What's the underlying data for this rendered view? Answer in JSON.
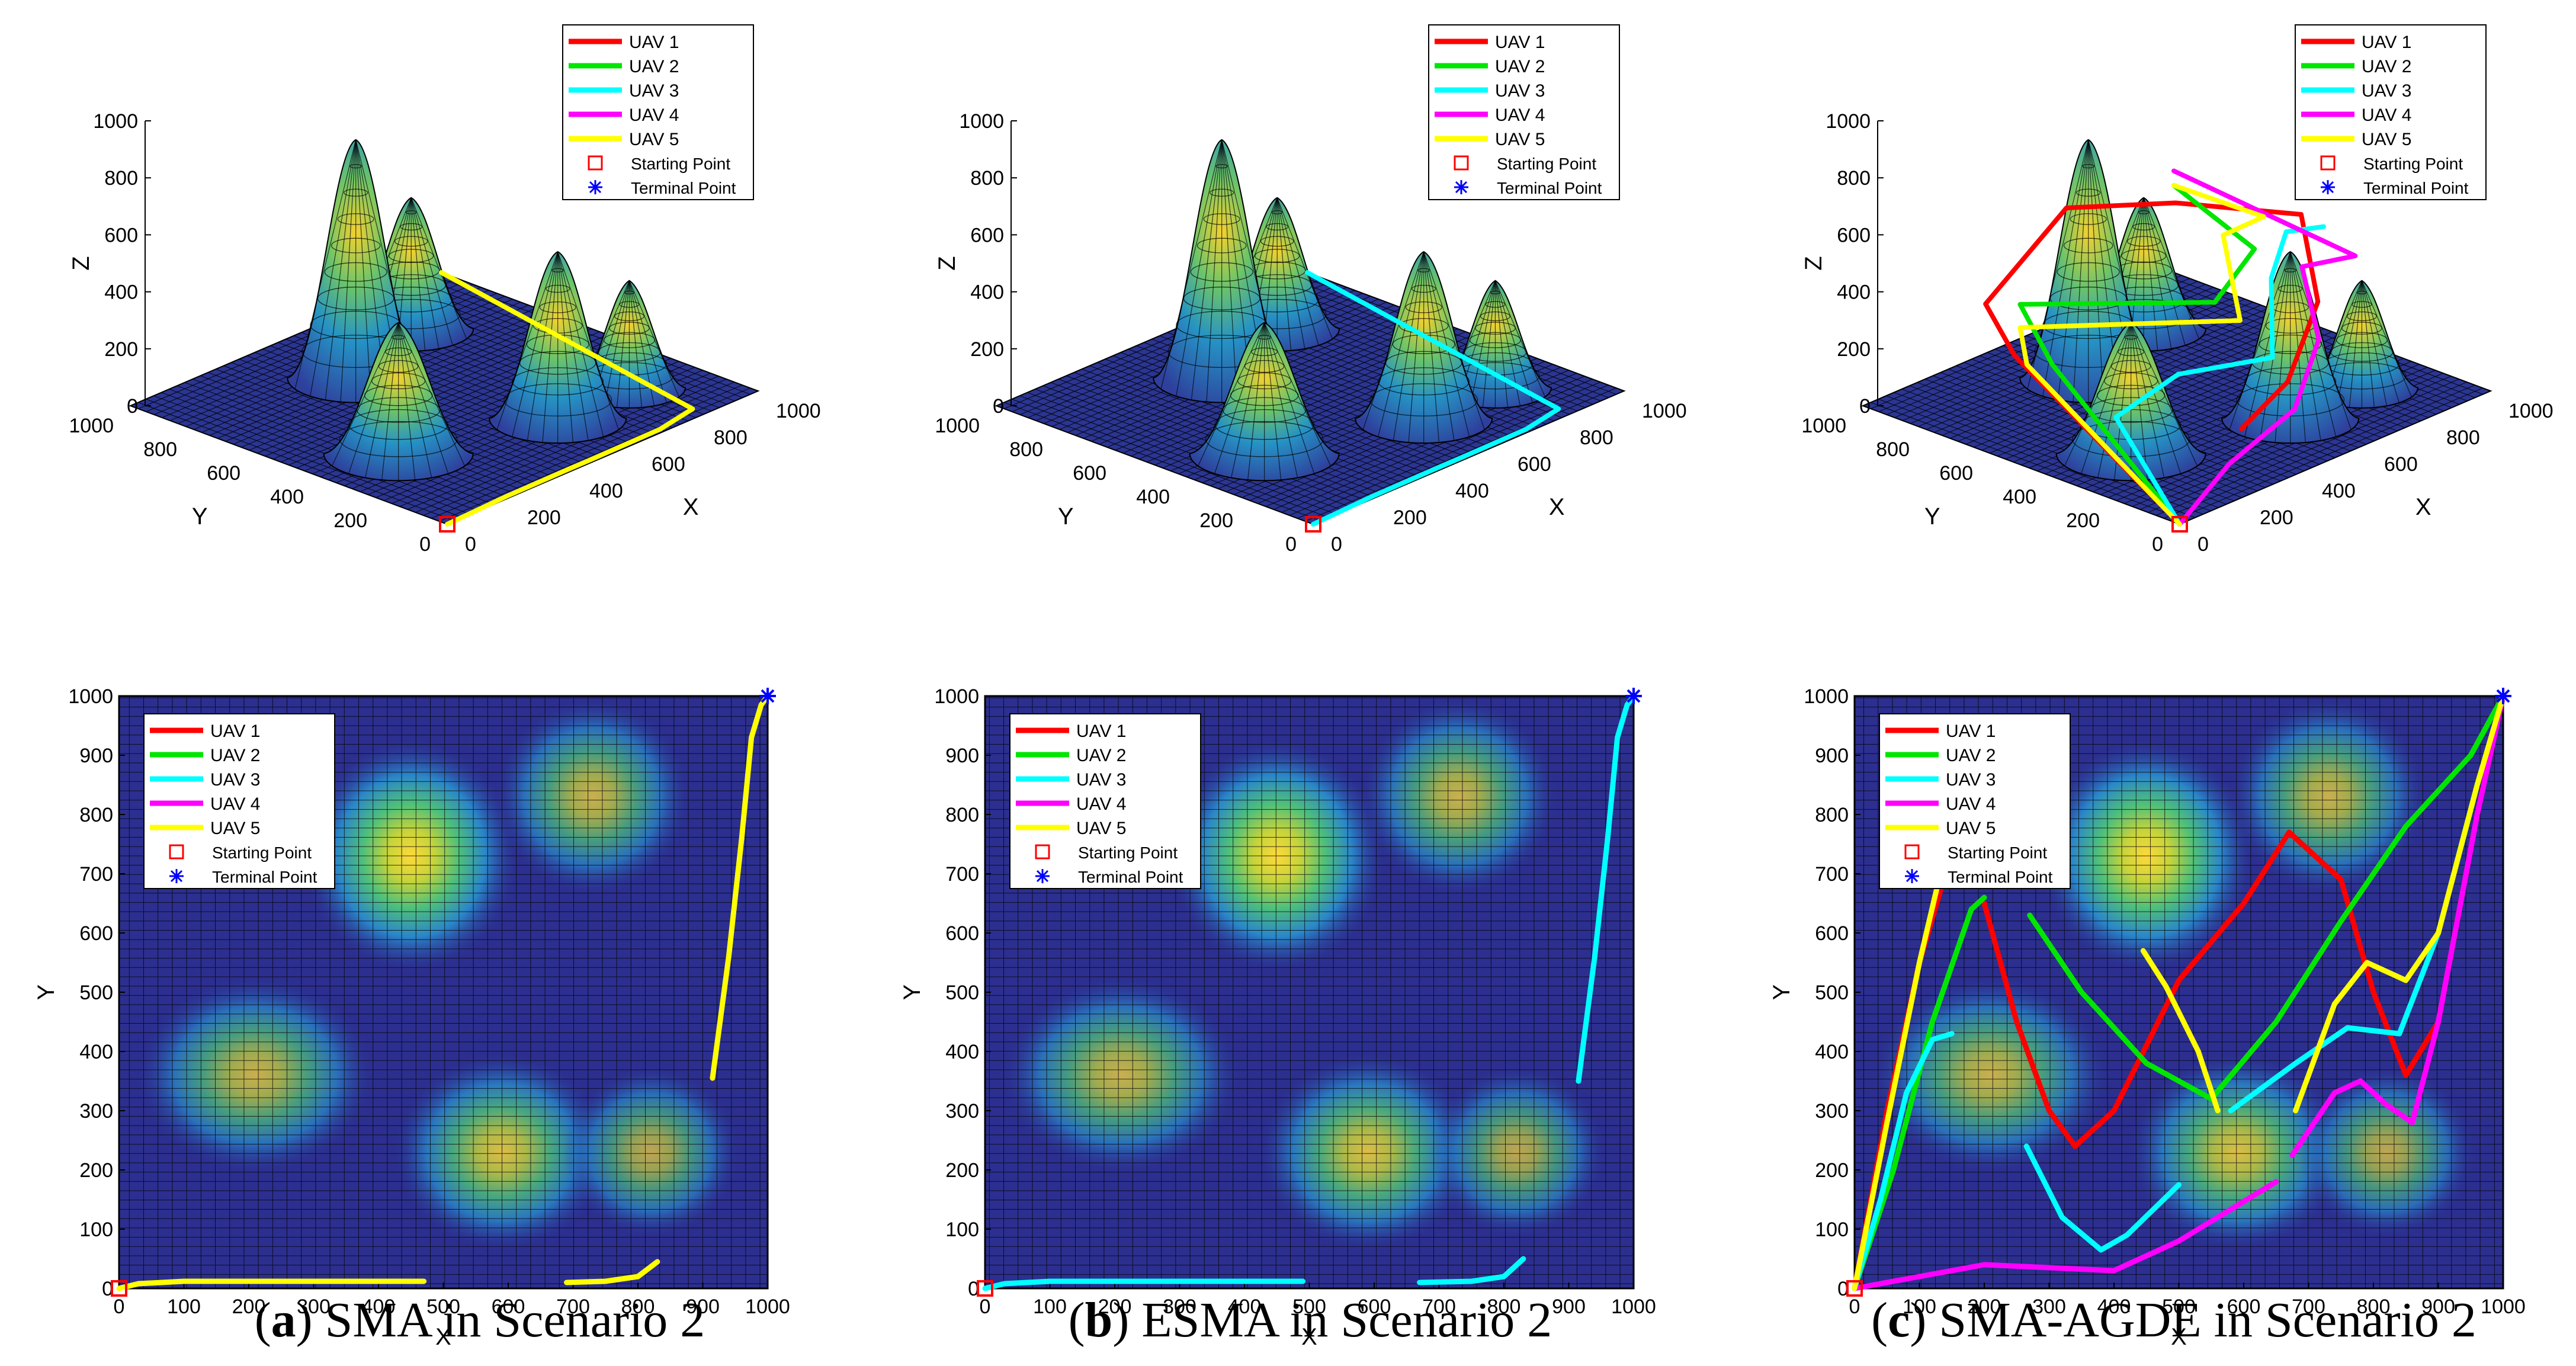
{
  "colors": {
    "uav1": "#ff0000",
    "uav2": "#00e600",
    "uav3": "#00ffff",
    "uav4": "#ff00ff",
    "uav5": "#ffff00",
    "start": "#ff0000",
    "terminal": "#0000ff",
    "bg_dark": "#2c2f8f"
  },
  "legend": {
    "uav1": "UAV 1",
    "uav2": "UAV 2",
    "uav3": "UAV 3",
    "uav4": "UAV 4",
    "uav5": "UAV 5",
    "start": "Starting Point",
    "terminal": "Terminal Point"
  },
  "captions": [
    {
      "letter": "a",
      "text": ") SMA in Scenario 2"
    },
    {
      "letter": "b",
      "text": ") ESMA in Scenario 2"
    },
    {
      "letter": "c",
      "text": ") SMA-AGDE in Scenario 2"
    }
  ],
  "chart_data": [
    {
      "type": "line",
      "panel": "a-3d",
      "title": "",
      "xlabel": "X",
      "ylabel": "Y",
      "zlabel": "Z",
      "xlim": [
        0,
        1000
      ],
      "ylim": [
        0,
        1000
      ],
      "zlim": [
        0,
        1000
      ],
      "x_ticks": [
        "0",
        "200",
        "400",
        "600",
        "800",
        "1000"
      ],
      "y_ticks": [
        "0",
        "200",
        "400",
        "600",
        "800",
        "1000"
      ],
      "z_ticks": [
        "0",
        "200",
        "400",
        "600",
        "800",
        "1000"
      ],
      "series": [
        {
          "name": "UAV 5",
          "x": [
            0,
            200,
            400,
            470,
            700,
            830,
            1000
          ],
          "y": [
            0,
            10,
            12,
            12,
            15,
            40,
            1000
          ],
          "z": [
            0,
            0,
            0,
            0,
            0,
            0,
            0
          ]
        }
      ]
    },
    {
      "type": "line",
      "panel": "a-2d",
      "xlabel": "X",
      "ylabel": "Y",
      "xlim": [
        0,
        1000
      ],
      "ylim": [
        0,
        1000
      ],
      "x_ticks": [
        "0",
        "100",
        "200",
        "300",
        "400",
        "500",
        "600",
        "700",
        "800",
        "900",
        "1000"
      ],
      "y_ticks": [
        "0",
        "100",
        "200",
        "300",
        "400",
        "500",
        "600",
        "700",
        "800",
        "900",
        "1000"
      ],
      "series": [
        {
          "name": "UAV 5",
          "segments": [
            {
              "x": [
                0,
                30,
                100,
                200,
                300,
                400,
                470
              ],
              "y": [
                0,
                8,
                12,
                12,
                12,
                12,
                12
              ]
            },
            {
              "x": [
                690,
                750,
                800,
                830
              ],
              "y": [
                10,
                12,
                20,
                45
              ]
            },
            {
              "x": [
                915,
                940,
                960,
                975,
                990,
                1000
              ],
              "y": [
                355,
                560,
                760,
                930,
                985,
                1000
              ]
            }
          ]
        }
      ]
    },
    {
      "type": "line",
      "panel": "b-3d",
      "xlabel": "X",
      "ylabel": "Y",
      "zlabel": "Z",
      "xlim": [
        0,
        1000
      ],
      "ylim": [
        0,
        1000
      ],
      "zlim": [
        0,
        1000
      ],
      "x_ticks": [
        "0",
        "200",
        "400",
        "600",
        "800",
        "1000"
      ],
      "y_ticks": [
        "0",
        "200",
        "400",
        "600",
        "800",
        "1000"
      ],
      "z_ticks": [
        "0",
        "200",
        "400",
        "600",
        "800",
        "1000"
      ],
      "series": [
        {
          "name": "UAV 3",
          "x": [
            0,
            200,
            400,
            490,
            700,
            830,
            1000
          ],
          "y": [
            0,
            10,
            12,
            12,
            15,
            40,
            1000
          ],
          "z": [
            0,
            0,
            0,
            0,
            0,
            0,
            0
          ]
        }
      ]
    },
    {
      "type": "line",
      "panel": "b-2d",
      "xlabel": "X",
      "ylabel": "Y",
      "xlim": [
        0,
        1000
      ],
      "ylim": [
        0,
        1000
      ],
      "x_ticks": [
        "0",
        "100",
        "200",
        "300",
        "400",
        "500",
        "600",
        "700",
        "800",
        "900",
        "1000"
      ],
      "y_ticks": [
        "0",
        "100",
        "200",
        "300",
        "400",
        "500",
        "600",
        "700",
        "800",
        "900",
        "1000"
      ],
      "series": [
        {
          "name": "UAV 3",
          "segments": [
            {
              "x": [
                0,
                30,
                100,
                200,
                300,
                400,
                490
              ],
              "y": [
                0,
                8,
                12,
                12,
                12,
                12,
                12
              ]
            },
            {
              "x": [
                670,
                750,
                800,
                830
              ],
              "y": [
                10,
                12,
                20,
                50
              ]
            },
            {
              "x": [
                915,
                940,
                960,
                975,
                990,
                1000
              ],
              "y": [
                350,
                560,
                760,
                930,
                985,
                1000
              ]
            }
          ]
        }
      ]
    },
    {
      "type": "line",
      "panel": "c-3d",
      "xlabel": "X",
      "ylabel": "Y",
      "zlabel": "Z",
      "xlim": [
        0,
        1000
      ],
      "ylim": [
        0,
        1000
      ],
      "zlim": [
        0,
        1000
      ],
      "x_ticks": [
        "0",
        "200",
        "400",
        "600",
        "800",
        "1000"
      ],
      "y_ticks": [
        "0",
        "200",
        "400",
        "600",
        "800",
        "1000"
      ],
      "z_ticks": [
        "0",
        "200",
        "400",
        "600",
        "800",
        "1000"
      ],
      "series": [
        {
          "name": "UAV 1",
          "x": [
            0,
            80,
            150,
            400,
            700,
            900,
            750,
            500,
            300
          ],
          "y": [
            0,
            600,
            760,
            750,
            700,
            500,
            300,
            150,
            100
          ],
          "z": [
            0,
            300,
            380,
            600,
            500,
            450,
            300,
            200,
            150
          ]
        },
        {
          "name": "UAV 2",
          "x": [
            0,
            100,
            200,
            500,
            750,
            1000
          ],
          "y": [
            0,
            500,
            700,
            380,
            500,
            1000
          ],
          "z": [
            0,
            300,
            380,
            380,
            400,
            300
          ]
        },
        {
          "name": "UAV 3",
          "x": [
            0,
            100,
            250,
            400,
            600,
            750,
            850
          ],
          "y": [
            0,
            300,
            250,
            100,
            300,
            400,
            380
          ],
          "z": [
            0,
            200,
            300,
            350,
            450,
            500,
            480
          ]
        },
        {
          "name": "UAV 4",
          "x": [
            0,
            200,
            400,
            600,
            750,
            850,
            1000
          ],
          "y": [
            0,
            40,
            30,
            150,
            350,
            280,
            1000
          ],
          "z": [
            0,
            100,
            200,
            300,
            400,
            420,
            350
          ]
        },
        {
          "name": "UAV 5",
          "x": [
            0,
            120,
            200,
            500,
            700,
            800,
            1000
          ],
          "y": [
            0,
            600,
            700,
            300,
            550,
            520,
            1000
          ],
          "z": [
            0,
            250,
            300,
            350,
            450,
            480,
            300
          ]
        }
      ]
    },
    {
      "type": "line",
      "panel": "c-2d",
      "xlabel": "X",
      "ylabel": "Y",
      "xlim": [
        0,
        1000
      ],
      "ylim": [
        0,
        1000
      ],
      "x_ticks": [
        "0",
        "100",
        "200",
        "300",
        "400",
        "500",
        "600",
        "700",
        "800",
        "900",
        "1000"
      ],
      "y_ticks": [
        "0",
        "100",
        "200",
        "300",
        "400",
        "500",
        "600",
        "700",
        "800",
        "900",
        "1000"
      ],
      "series": [
        {
          "name": "UAV 1",
          "segments": [
            {
              "x": [
                0,
                50,
                100,
                140,
                170
              ],
              "y": [
                0,
                300,
                550,
                700,
                720
              ]
            },
            {
              "x": [
                200,
                250,
                300,
                340,
                400,
                500,
                600,
                670,
                750,
                800,
                850,
                900,
                960,
                1000
              ],
              "y": [
                650,
                450,
                300,
                240,
                300,
                520,
                650,
                770,
                690,
                500,
                360,
                450,
                800,
                1000
              ]
            }
          ]
        },
        {
          "name": "UAV 2",
          "segments": [
            {
              "x": [
                0,
                60,
                120,
                180,
                200
              ],
              "y": [
                0,
                200,
                450,
                640,
                660
              ]
            },
            {
              "x": [
                270,
                350,
                450,
                550,
                650,
                750,
                850,
                950,
                1000
              ],
              "y": [
                630,
                500,
                380,
                320,
                450,
                620,
                780,
                900,
                1000
              ]
            }
          ]
        },
        {
          "name": "UAV 3",
          "segments": [
            {
              "x": [
                0,
                40,
                80,
                120,
                150
              ],
              "y": [
                0,
                150,
                330,
                420,
                430
              ]
            },
            {
              "x": [
                265,
                320,
                380,
                420,
                500
              ],
              "y": [
                240,
                120,
                65,
                90,
                175
              ]
            },
            {
              "x": [
                580,
                680,
                760,
                840,
                900,
                960,
                1000
              ],
              "y": [
                300,
                380,
                440,
                430,
                600,
                850,
                1000
              ]
            }
          ]
        },
        {
          "name": "UAV 4",
          "segments": [
            {
              "x": [
                0,
                100,
                200,
                300,
                400,
                500,
                650
              ],
              "y": [
                0,
                20,
                40,
                35,
                30,
                80,
                180
              ]
            },
            {
              "x": [
                675,
                740,
                780,
                820,
                860,
                900,
                960,
                1000
              ],
              "y": [
                225,
                330,
                350,
                310,
                280,
                450,
                800,
                1000
              ]
            }
          ]
        },
        {
          "name": "UAV 5",
          "segments": [
            {
              "x": [
                0,
                50,
                100,
                130,
                150
              ],
              "y": [
                0,
                280,
                550,
                690,
                700
              ]
            },
            {
              "x": [
                445,
                480,
                530,
                560
              ],
              "y": [
                570,
                510,
                400,
                300
              ]
            },
            {
              "x": [
                680,
                740,
                790,
                850,
                900,
                960,
                1000
              ],
              "y": [
                300,
                480,
                550,
                520,
                600,
                850,
                1000
              ]
            }
          ]
        }
      ]
    }
  ]
}
